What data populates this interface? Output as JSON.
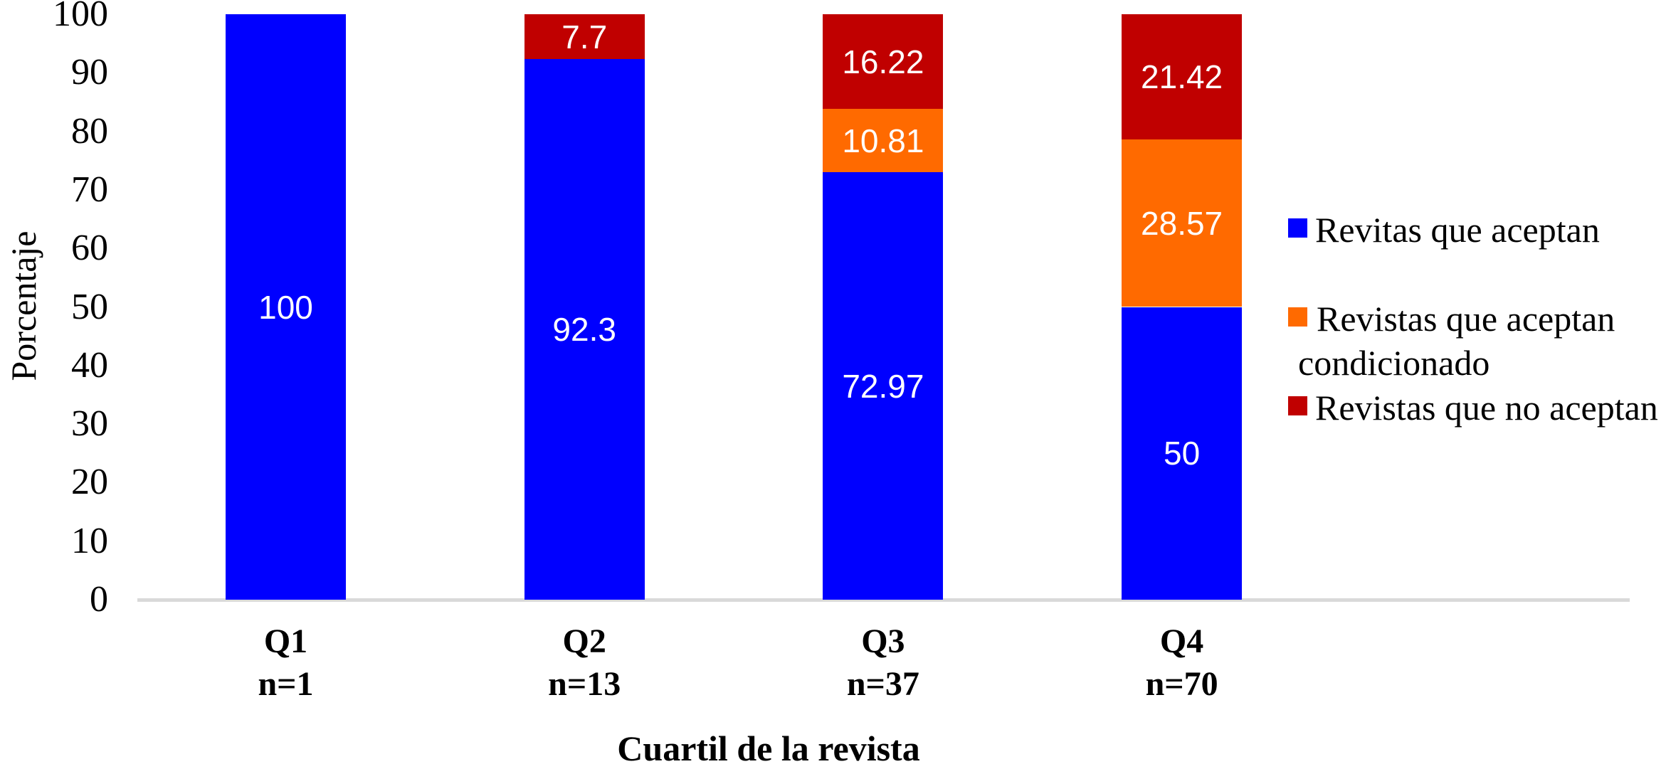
{
  "chart_data": {
    "type": "bar",
    "stacked": true,
    "xlabel": "Cuartil de la revista",
    "ylabel": "Porcentaje",
    "ylim": [
      0,
      100
    ],
    "ytick_step": 10,
    "grid": false,
    "legend_position": "right",
    "axis_line_color": "#D9D9D9",
    "bar_label_color": "#FFFFFF",
    "categories": [
      {
        "label": "Q1",
        "n_label": "n=1"
      },
      {
        "label": "Q2",
        "n_label": "n=13"
      },
      {
        "label": "Q3",
        "n_label": "n=37"
      },
      {
        "label": "Q4",
        "n_label": "n=70"
      }
    ],
    "series": [
      {
        "name": "Revitas que aceptan",
        "color": "#0000FF",
        "values": [
          100,
          92.3,
          72.97,
          50
        ],
        "labels": [
          "100",
          "92.3",
          "72.97",
          "50"
        ]
      },
      {
        "name": "Revistas que aceptan condicionado",
        "color": "#FF6A00",
        "values": [
          0,
          0,
          10.81,
          28.57
        ],
        "labels": [
          "",
          "",
          "10.81",
          "28.57"
        ]
      },
      {
        "name": "Revistas que no aceptan",
        "color": "#C00000",
        "values": [
          0,
          7.7,
          16.22,
          21.42
        ],
        "labels": [
          "",
          "7.7",
          "16.22",
          "21.42"
        ]
      }
    ]
  }
}
